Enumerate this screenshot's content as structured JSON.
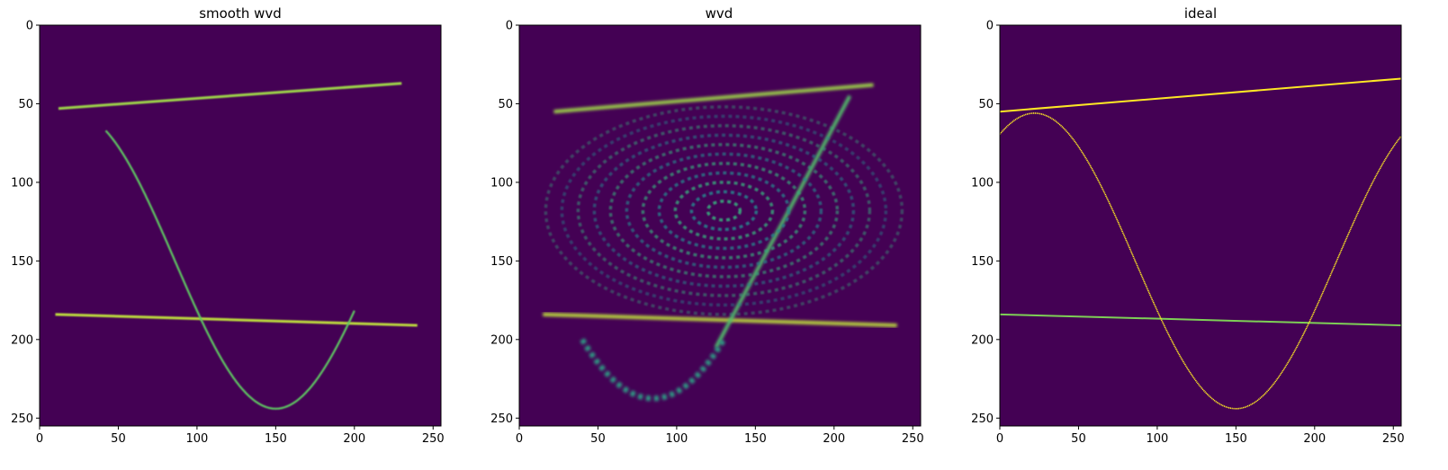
{
  "figure": {
    "background_color": "#ffffff"
  },
  "colormap": {
    "name": "viridis",
    "low": "#440154",
    "mid": "#21918c",
    "high": "#fde725"
  },
  "chart_data": [
    {
      "type": "heatmap",
      "title": "smooth wvd",
      "xlim": [
        0,
        255
      ],
      "ylim": [
        255,
        0
      ],
      "xticks": [
        0,
        50,
        100,
        150,
        200,
        250
      ],
      "yticks": [
        0,
        50,
        100,
        150,
        200,
        250
      ],
      "background_value": 0,
      "features": [
        {
          "kind": "line",
          "from": [
            12,
            53
          ],
          "to": [
            230,
            37
          ],
          "intensity": 0.85
        },
        {
          "kind": "line",
          "from": [
            10,
            184
          ],
          "to": [
            240,
            191
          ],
          "intensity": 0.9
        },
        {
          "kind": "sine-segment",
          "x_range": [
            42,
            200
          ],
          "center_y": 150,
          "amplitude": 94,
          "period": 256,
          "phase_x": 22,
          "intensity": 0.75
        }
      ]
    },
    {
      "type": "heatmap",
      "title": "wvd",
      "xlim": [
        0,
        255
      ],
      "ylim": [
        255,
        0
      ],
      "xticks": [
        0,
        50,
        100,
        150,
        200,
        250
      ],
      "yticks": [
        0,
        50,
        100,
        150,
        200,
        250
      ],
      "background_value": 0,
      "features": [
        {
          "kind": "line",
          "from": [
            22,
            55
          ],
          "to": [
            225,
            38
          ],
          "intensity": 0.85
        },
        {
          "kind": "line",
          "from": [
            15,
            184
          ],
          "to": [
            240,
            191
          ],
          "intensity": 0.9
        },
        {
          "kind": "line",
          "from": [
            125,
            205
          ],
          "to": [
            210,
            45
          ],
          "intensity": 0.7
        },
        {
          "kind": "interference",
          "description": "cross-term oscillations",
          "center": [
            130,
            118
          ],
          "intensity": 0.55
        }
      ]
    },
    {
      "type": "heatmap",
      "title": "ideal",
      "xlim": [
        0,
        255
      ],
      "ylim": [
        255,
        0
      ],
      "xticks": [
        0,
        50,
        100,
        150,
        200,
        250
      ],
      "yticks": [
        0,
        50,
        100,
        150,
        200,
        250
      ],
      "background_value": 0,
      "features": [
        {
          "kind": "line",
          "from": [
            0,
            55
          ],
          "to": [
            255,
            34
          ],
          "intensity": 1.0
        },
        {
          "kind": "line",
          "from": [
            0,
            184
          ],
          "to": [
            255,
            191
          ],
          "intensity": 0.8
        },
        {
          "kind": "sine",
          "x_range": [
            0,
            255
          ],
          "center_y": 150,
          "amplitude": 94,
          "period": 256,
          "phase_x": 22,
          "intensity": 1.0
        }
      ]
    }
  ]
}
